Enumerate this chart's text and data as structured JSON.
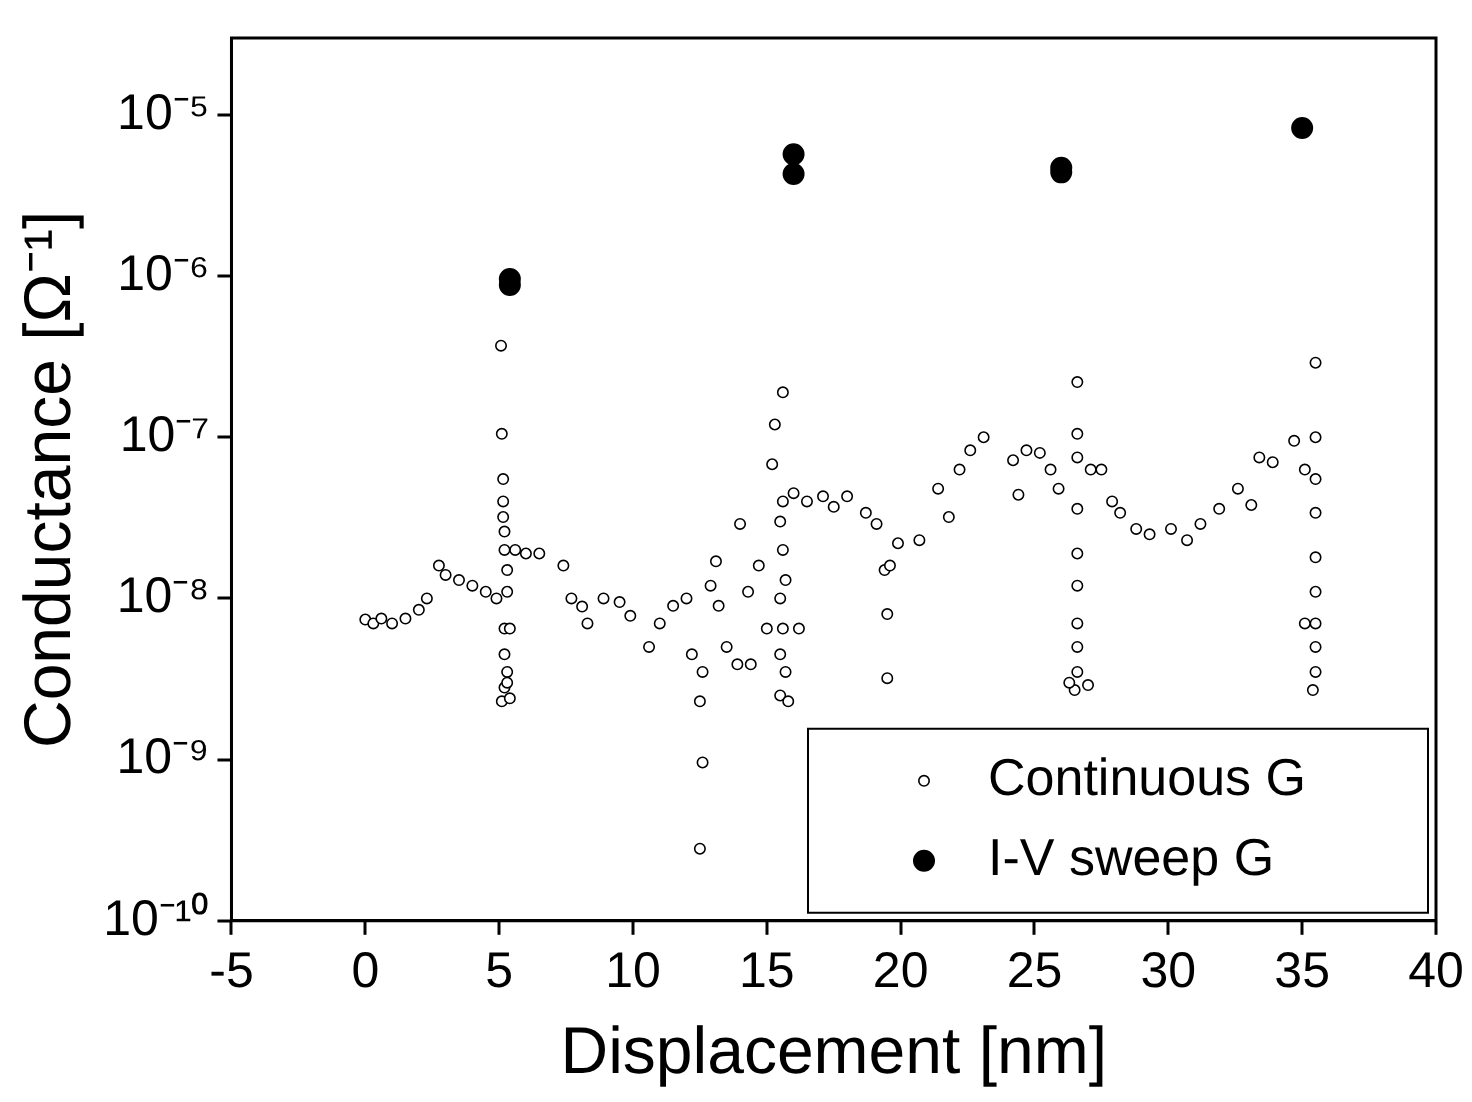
{
  "chart_data": {
    "type": "scatter",
    "xlabel": "Displacement [nm]",
    "ylabel": "Conductance [Ω⁻¹]",
    "log": "y",
    "grid": false,
    "legend": "bottom right",
    "xlim": [
      -5,
      40
    ],
    "xticks": [
      -5,
      0,
      5,
      10,
      15,
      20,
      25,
      30,
      35,
      40
    ],
    "ylim": [
      1e-10,
      3e-05
    ],
    "yticks": [
      {
        "value": 1e-10,
        "label": "10⁻¹⁰"
      },
      {
        "value": 1e-09,
        "label": "10⁻⁹"
      },
      {
        "value": 1e-08,
        "label": "10⁻⁸"
      },
      {
        "value": 1e-07,
        "label": "10⁻⁷"
      },
      {
        "value": 1e-06,
        "label": "10⁻⁶"
      },
      {
        "value": 1e-05,
        "label": "10⁻⁵"
      }
    ],
    "series": [
      {
        "name": "Continuous G",
        "color": "#000000",
        "marker": "circle_open",
        "x": [
          0,
          0.3,
          0.6,
          1,
          1.5,
          2,
          2.3,
          2.75,
          3,
          3.5,
          4,
          4.5,
          4.9,
          5.07,
          5.1,
          5.15,
          5.15,
          5.15,
          5.2,
          5.2,
          5.3,
          5.3,
          5.2,
          5.4,
          5.2,
          5.3,
          5.2,
          5.1,
          5.4,
          5.3,
          5.6,
          6,
          6.5,
          7.4,
          7.7,
          8.1,
          8.3,
          8.9,
          9.5,
          9.9,
          10.6,
          11,
          11.5,
          12,
          12.2,
          12.5,
          12.6,
          12.5,
          12.6,
          12.9,
          13.1,
          13.2,
          13.5,
          13.9,
          14,
          14.3,
          14.4,
          14.7,
          15,
          15.6,
          15.3,
          15.2,
          15.6,
          15.5,
          15.6,
          15.7,
          15.5,
          15.6,
          15.5,
          15.7,
          15.5,
          15.8,
          16.2,
          16,
          16.5,
          17.1,
          17.5,
          18,
          18.7,
          19.1,
          19.4,
          19.5,
          19.5,
          19.6,
          19.9,
          20.7,
          21.4,
          21.8,
          22.2,
          22.6,
          23.1,
          24.2,
          24.4,
          24.7,
          25.2,
          25.6,
          25.9,
          26.6,
          26.6,
          26.6,
          26.6,
          26.6,
          26.6,
          26.6,
          26.6,
          26.6,
          26.5,
          26.3,
          27,
          27.1,
          27.5,
          27.9,
          28.2,
          28.8,
          29.3,
          30.1,
          30.7,
          31.2,
          31.9,
          32.6,
          33.1,
          33.4,
          33.9,
          34.7,
          35.1,
          35.5,
          35.5,
          35.5,
          35.5,
          35.5,
          35.5,
          35.5,
          35.5,
          35.5,
          35.4,
          35.1
        ],
        "values": [
          7.4e-09,
          7e-09,
          7.5e-09,
          7e-09,
          7.5e-09,
          8.5e-09,
          1e-08,
          1.6e-08,
          1.4e-08,
          1.3e-08,
          1.2e-08,
          1.1e-08,
          1e-08,
          3.7e-07,
          1.05e-07,
          5.5e-08,
          4e-08,
          3.2e-08,
          2.6e-08,
          2e-08,
          1.5e-08,
          1.1e-08,
          6.5e-09,
          6.5e-09,
          4.5e-09,
          3.5e-09,
          2.8e-09,
          2.3e-09,
          2.4e-09,
          3e-09,
          2e-08,
          1.9e-08,
          1.9e-08,
          1.6e-08,
          1e-08,
          8.9e-09,
          7e-09,
          1e-08,
          9.5e-09,
          7.8e-09,
          5e-09,
          7e-09,
          9e-09,
          1e-08,
          4.5e-09,
          2.3e-09,
          9.6e-10,
          2.8e-10,
          3.5e-09,
          1.2e-08,
          1.7e-08,
          9e-09,
          5e-09,
          3.9e-09,
          2.9e-08,
          1.1e-08,
          3.9e-09,
          1.6e-08,
          6.5e-09,
          1.9e-07,
          1.2e-07,
          6.8e-08,
          4e-08,
          3e-08,
          2e-08,
          1.3e-08,
          1e-08,
          6.5e-09,
          4.5e-09,
          3.5e-09,
          2.5e-09,
          2.3e-09,
          6.5e-09,
          4.5e-08,
          4e-08,
          4.3e-08,
          3.7e-08,
          4.3e-08,
          3.4e-08,
          2.9e-08,
          1.5e-08,
          8e-09,
          3.2e-09,
          1.6e-08,
          2.2e-08,
          2.3e-08,
          4.8e-08,
          3.2e-08,
          6.3e-08,
          8.3e-08,
          1e-07,
          7.2e-08,
          4.4e-08,
          8.3e-08,
          8e-08,
          6.3e-08,
          4.8e-08,
          2.2e-07,
          1.05e-07,
          7.5e-08,
          3.6e-08,
          1.9e-08,
          1.2e-08,
          7e-09,
          5e-09,
          3.5e-09,
          2.7e-09,
          3e-09,
          2.9e-09,
          6.3e-08,
          6.3e-08,
          4e-08,
          3.4e-08,
          2.7e-08,
          2.5e-08,
          2.7e-08,
          2.3e-08,
          2.9e-08,
          3.6e-08,
          4.8e-08,
          3.8e-08,
          7.5e-08,
          7e-08,
          9.5e-08,
          6.3e-08,
          2.9e-07,
          1e-07,
          5.5e-08,
          3.4e-08,
          1.8e-08,
          1.1e-08,
          7e-09,
          5e-09,
          3.5e-09,
          2.7e-09,
          7e-09
        ]
      },
      {
        "name": "I-V sweep G",
        "color": "#000000",
        "marker": "circle",
        "x": [
          5.4,
          5.4,
          16,
          16,
          26,
          26,
          35
        ],
        "values": [
          8.8e-07,
          9.6e-07,
          5.7e-06,
          4.3e-06,
          4.7e-06,
          4.4e-06,
          8.3e-06
        ]
      }
    ]
  }
}
